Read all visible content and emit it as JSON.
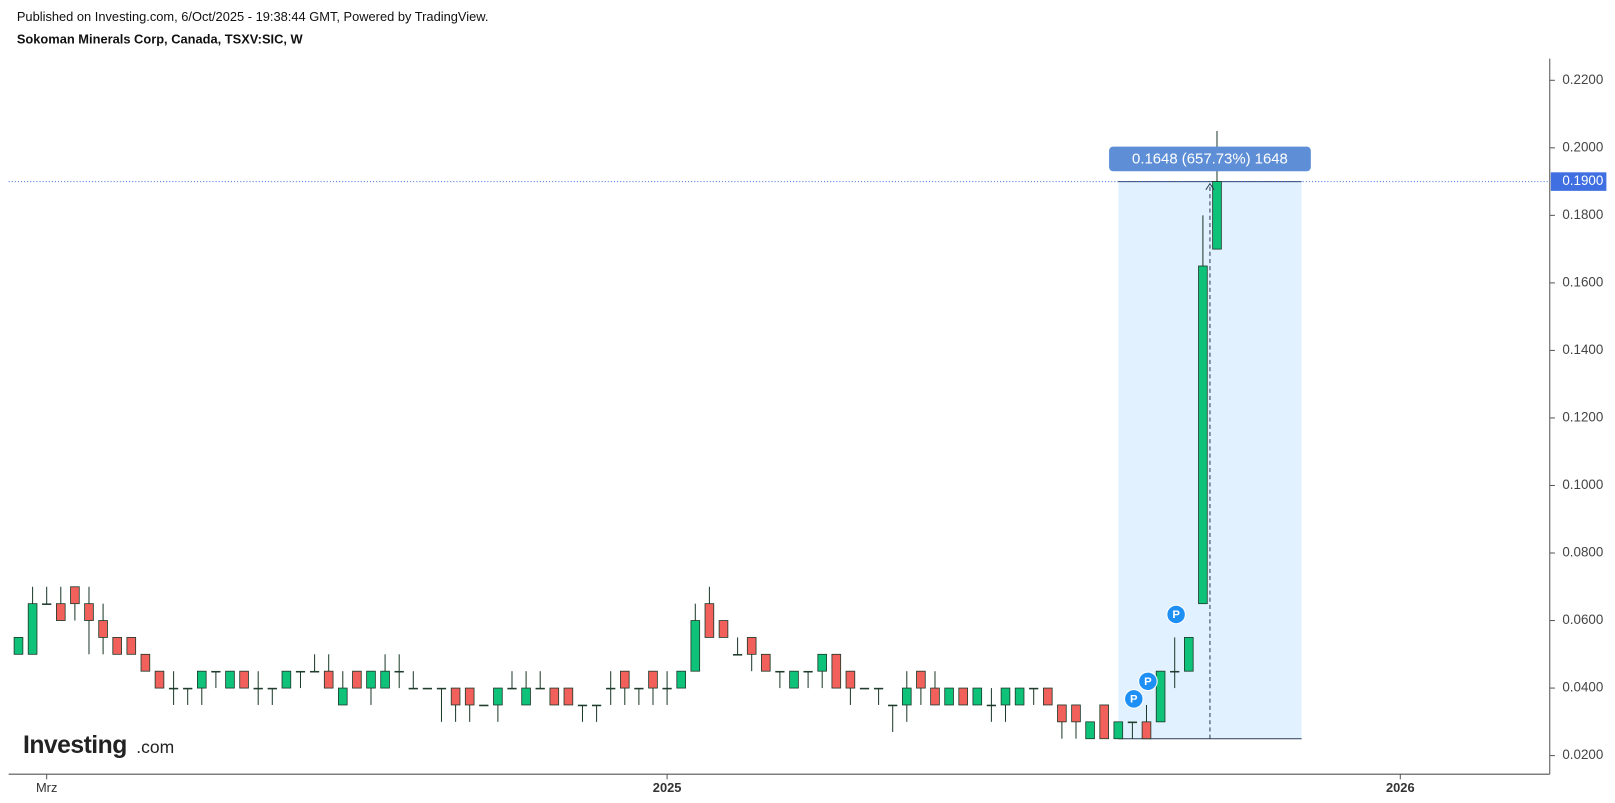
{
  "chart_data": {
    "type": "candlestick",
    "published": "Published on Investing.com, 6/Oct/2025 - 19:38:44 GMT, Powered by TradingView.",
    "title": "Sokoman Minerals Corp, Canada, TSXV:SIC, W",
    "watermark": [
      "Investing",
      ".com"
    ],
    "up_color": "#0fc27a",
    "down_color": "#f2605b",
    "border_color": "#1d3b2b",
    "x": [
      0,
      1,
      2,
      3,
      4,
      5,
      6,
      7,
      8,
      9,
      10,
      11,
      12,
      13,
      14,
      15,
      16,
      17,
      18,
      19,
      20,
      21,
      22,
      23,
      24,
      25,
      26,
      27,
      28,
      29,
      30,
      31,
      32,
      33,
      34,
      35,
      36,
      37,
      38,
      39,
      40,
      41,
      42,
      43,
      44,
      45,
      46,
      47,
      48,
      49,
      50,
      51,
      52,
      53,
      54,
      55,
      56,
      57,
      58,
      59,
      60,
      61,
      62,
      63,
      64,
      65,
      66,
      67,
      68,
      69,
      70,
      71,
      72,
      73,
      74,
      75,
      76,
      77,
      78,
      79,
      80,
      81,
      82,
      83,
      84,
      85
    ],
    "open": [
      0.05,
      0.05,
      0.065,
      0.065,
      0.07,
      0.065,
      0.06,
      0.055,
      0.055,
      0.05,
      0.045,
      0.04,
      0.04,
      0.04,
      0.045,
      0.04,
      0.045,
      0.04,
      0.04,
      0.04,
      0.045,
      0.045,
      0.045,
      0.035,
      0.045,
      0.04,
      0.04,
      0.045,
      0.04,
      0.04,
      0.04,
      0.04,
      0.04,
      0.035,
      0.035,
      0.04,
      0.035,
      0.04,
      0.04,
      0.04,
      0.035,
      0.035,
      0.04,
      0.045,
      0.04,
      0.045,
      0.04,
      0.04,
      0.045,
      0.065,
      0.06,
      0.05,
      0.055,
      0.05,
      0.045,
      0.04,
      0.045,
      0.045,
      0.05,
      0.045,
      0.04,
      0.04,
      0.035,
      0.035,
      0.045,
      0.04,
      0.035,
      0.04,
      0.035,
      0.035,
      0.035,
      0.035,
      0.04,
      0.04,
      0.035,
      0.035,
      0.025,
      0.035,
      0.025,
      0.03,
      0.03,
      0.03,
      0.045,
      0.045,
      0.065,
      0.17
    ],
    "high": [
      0.055,
      0.07,
      0.07,
      0.07,
      0.07,
      0.07,
      0.065,
      0.055,
      0.055,
      0.05,
      0.045,
      0.045,
      0.04,
      0.045,
      0.045,
      0.045,
      0.045,
      0.045,
      0.04,
      0.045,
      0.045,
      0.05,
      0.05,
      0.045,
      0.045,
      0.045,
      0.05,
      0.05,
      0.045,
      0.04,
      0.04,
      0.04,
      0.04,
      0.035,
      0.04,
      0.045,
      0.045,
      0.045,
      0.04,
      0.04,
      0.035,
      0.035,
      0.045,
      0.045,
      0.04,
      0.045,
      0.045,
      0.045,
      0.065,
      0.07,
      0.06,
      0.055,
      0.055,
      0.05,
      0.045,
      0.045,
      0.045,
      0.05,
      0.05,
      0.045,
      0.04,
      0.04,
      0.035,
      0.045,
      0.045,
      0.045,
      0.04,
      0.04,
      0.04,
      0.04,
      0.04,
      0.04,
      0.04,
      0.04,
      0.035,
      0.035,
      0.03,
      0.035,
      0.03,
      0.03,
      0.035,
      0.045,
      0.055,
      0.055,
      0.18,
      0.205
    ],
    "low": [
      0.05,
      0.05,
      0.065,
      0.06,
      0.06,
      0.05,
      0.05,
      0.05,
      0.05,
      0.045,
      0.04,
      0.035,
      0.035,
      0.035,
      0.04,
      0.04,
      0.04,
      0.035,
      0.035,
      0.04,
      0.04,
      0.045,
      0.04,
      0.035,
      0.04,
      0.035,
      0.04,
      0.04,
      0.04,
      0.04,
      0.03,
      0.03,
      0.03,
      0.035,
      0.03,
      0.04,
      0.035,
      0.04,
      0.035,
      0.035,
      0.03,
      0.03,
      0.035,
      0.035,
      0.035,
      0.035,
      0.035,
      0.04,
      0.045,
      0.055,
      0.055,
      0.05,
      0.045,
      0.045,
      0.04,
      0.04,
      0.04,
      0.04,
      0.04,
      0.035,
      0.04,
      0.035,
      0.027,
      0.03,
      0.035,
      0.035,
      0.035,
      0.035,
      0.035,
      0.03,
      0.03,
      0.035,
      0.035,
      0.035,
      0.025,
      0.025,
      0.025,
      0.025,
      0.025,
      0.025,
      0.025,
      0.03,
      0.04,
      0.045,
      0.065,
      0.17
    ],
    "close": [
      0.055,
      0.065,
      0.065,
      0.06,
      0.065,
      0.06,
      0.055,
      0.05,
      0.05,
      0.045,
      0.04,
      0.04,
      0.04,
      0.045,
      0.045,
      0.045,
      0.04,
      0.04,
      0.04,
      0.045,
      0.045,
      0.045,
      0.04,
      0.04,
      0.04,
      0.045,
      0.045,
      0.045,
      0.04,
      0.04,
      0.04,
      0.035,
      0.035,
      0.035,
      0.04,
      0.04,
      0.04,
      0.04,
      0.035,
      0.035,
      0.035,
      0.035,
      0.04,
      0.04,
      0.04,
      0.04,
      0.04,
      0.045,
      0.06,
      0.055,
      0.055,
      0.05,
      0.05,
      0.045,
      0.045,
      0.045,
      0.045,
      0.05,
      0.04,
      0.04,
      0.04,
      0.04,
      0.035,
      0.04,
      0.04,
      0.035,
      0.04,
      0.035,
      0.04,
      0.035,
      0.04,
      0.04,
      0.04,
      0.035,
      0.03,
      0.03,
      0.03,
      0.025,
      0.03,
      0.03,
      0.025,
      0.045,
      0.045,
      0.055,
      0.165,
      0.19
    ],
    "xlim": [
      -0.7,
      108.6
    ],
    "ylim": [
      0.0145,
      0.2264
    ],
    "xticks": [
      {
        "value": 2,
        "label": "Mrz"
      },
      {
        "value": 46,
        "label": "2025"
      },
      {
        "value": 98,
        "label": "2026"
      }
    ],
    "yticks": [
      {
        "value": 0.02,
        "label": "0.0200"
      },
      {
        "value": 0.04,
        "label": "0.0400"
      },
      {
        "value": 0.06,
        "label": "0.0600"
      },
      {
        "value": 0.08,
        "label": "0.0800"
      },
      {
        "value": 0.1,
        "label": "0.1000"
      },
      {
        "value": 0.12,
        "label": "0.1200"
      },
      {
        "value": 0.14,
        "label": "0.1400"
      },
      {
        "value": 0.16,
        "label": "0.1600"
      },
      {
        "value": 0.18,
        "label": "0.1800"
      },
      {
        "value": 0.2,
        "label": "0.2000"
      },
      {
        "value": 0.22,
        "label": "0.2200"
      }
    ],
    "last_price": {
      "value": 0.19,
      "label": "0.1900"
    },
    "measure": {
      "label": "0.1648 (657.73%) 1648",
      "x_from": 78,
      "x_to": 91,
      "low": 0.025,
      "high": 0.19
    },
    "markers": [
      {
        "x": 79.1,
        "y": 0.0368,
        "label": "P"
      },
      {
        "x": 80.1,
        "y": 0.042,
        "label": "P"
      },
      {
        "x": 82.1,
        "y": 0.0618,
        "label": "P"
      }
    ]
  }
}
